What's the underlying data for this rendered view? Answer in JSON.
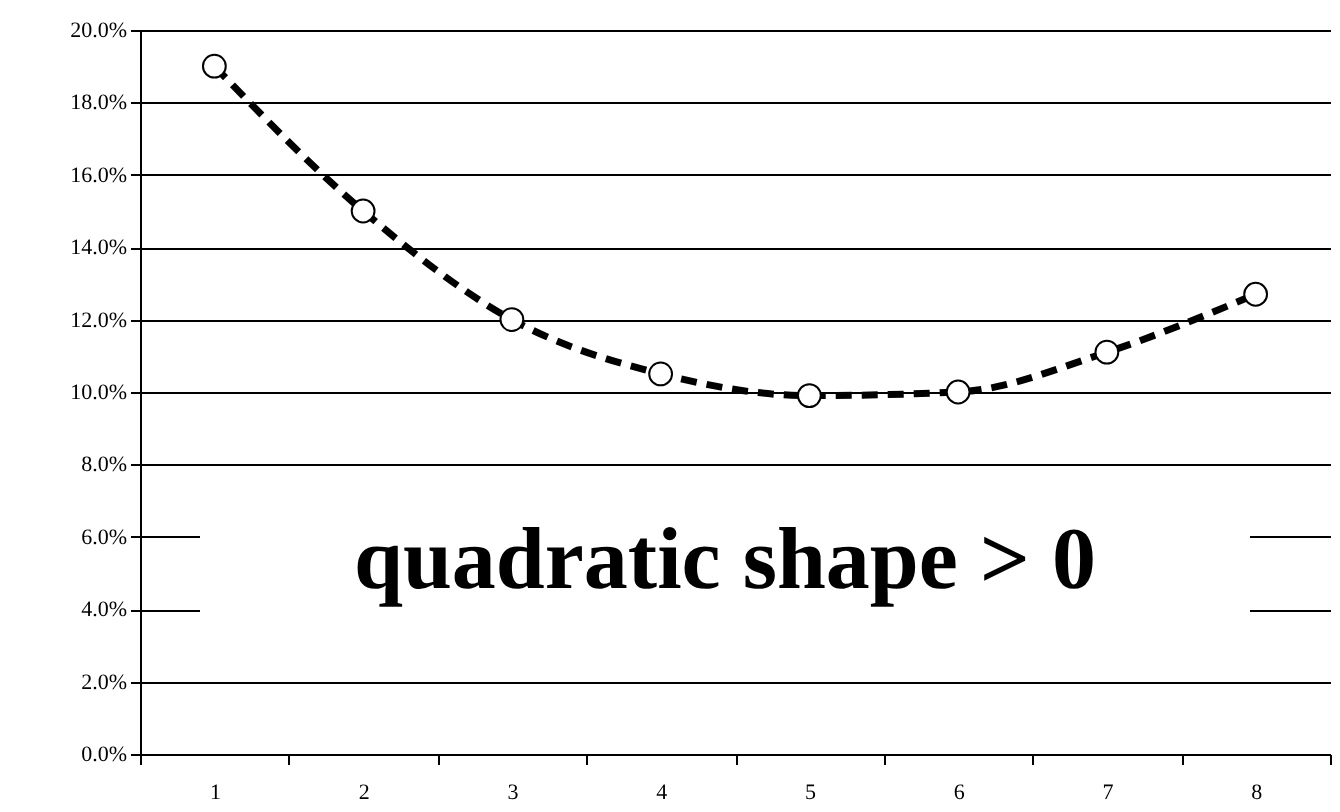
{
  "chart_data": {
    "type": "line",
    "categories": [
      "1",
      "2",
      "3",
      "4",
      "5",
      "6",
      "7",
      "8"
    ],
    "series": [
      {
        "color": "#000000",
        "values": [
          19.0,
          15.0,
          12.0,
          10.5,
          9.9,
          10.0,
          11.1,
          12.7
        ]
      }
    ],
    "ylim": [
      0,
      20
    ],
    "yticks": [
      {
        "value": 0,
        "label": "0.0%"
      },
      {
        "value": 2,
        "label": "2.0%"
      },
      {
        "value": 4,
        "label": "4.0%"
      },
      {
        "value": 6,
        "label": "6.0%"
      },
      {
        "value": 8,
        "label": "8.0%"
      },
      {
        "value": 10,
        "label": "10.0%"
      },
      {
        "value": 12,
        "label": "12.0%"
      },
      {
        "value": 14,
        "label": "14.0%"
      },
      {
        "value": 16,
        "label": "16.0%"
      },
      {
        "value": 18,
        "label": "18.0%"
      },
      {
        "value": 20,
        "label": "20.0%"
      }
    ],
    "grid": "y",
    "marker": "circle",
    "line_style": "dashed",
    "annotations": [
      "quadratic shape > 0"
    ]
  }
}
